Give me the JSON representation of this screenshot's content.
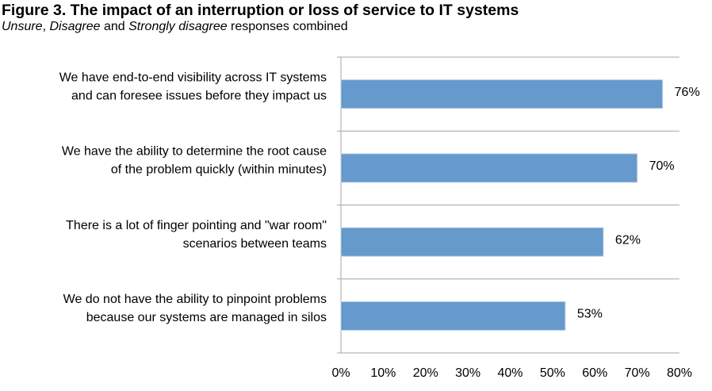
{
  "figure": {
    "title": "Figure 3. The impact of an interruption or loss of service to IT systems",
    "subtitle_parts": [
      {
        "text": "Unsure",
        "italic": true
      },
      {
        "text": ", ",
        "italic": false
      },
      {
        "text": "Disagree",
        "italic": true
      },
      {
        "text": " and ",
        "italic": false
      },
      {
        "text": "Strongly disagree",
        "italic": true
      },
      {
        "text": " responses combined",
        "italic": false
      }
    ]
  },
  "chart_data": {
    "type": "bar",
    "orientation": "horizontal",
    "title": "Figure 3. The impact of an interruption or loss of service to IT systems",
    "subtitle": "Unsure, Disagree and Strongly disagree responses combined",
    "categories": [
      [
        "We have end-to-end visibility across IT systems",
        "and can foresee issues before they impact us"
      ],
      [
        "We have the ability to determine the root cause",
        "of the problem quickly (within minutes)"
      ],
      [
        "There is a lot of finger pointing and \"war room\"",
        "scenarios between teams"
      ],
      [
        "We do not have the ability to pinpoint problems",
        "because our systems are managed in silos"
      ]
    ],
    "values": [
      76,
      70,
      62,
      53
    ],
    "value_labels": [
      "76%",
      "70%",
      "62%",
      "53%"
    ],
    "xlim": [
      0,
      80
    ],
    "xticks": [
      0,
      10,
      20,
      30,
      40,
      50,
      60,
      70,
      80
    ],
    "xtick_labels": [
      "0%",
      "10%",
      "20%",
      "30%",
      "40%",
      "50%",
      "60%",
      "70%",
      "80%"
    ],
    "bar_color": "#6699cc",
    "bar_edge_color": "#b8cfe6",
    "grid": "horizontal separators between categories",
    "legend": "none"
  }
}
